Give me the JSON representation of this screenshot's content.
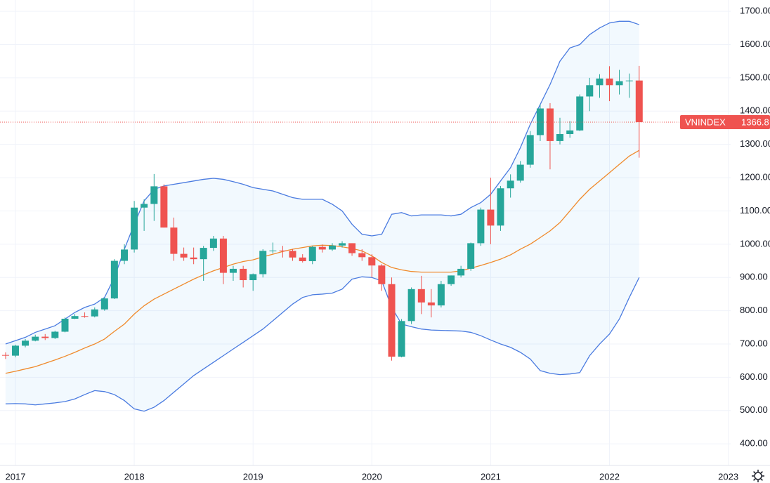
{
  "chart_data": {
    "type": "candlestick",
    "x": [
      2016.917,
      2017,
      2017.083,
      2017.167,
      2017.25,
      2017.333,
      2017.417,
      2017.5,
      2017.583,
      2017.667,
      2017.75,
      2017.833,
      2017.917,
      2018,
      2018.083,
      2018.167,
      2018.25,
      2018.333,
      2018.417,
      2018.5,
      2018.583,
      2018.667,
      2018.75,
      2018.833,
      2018.917,
      2019,
      2019.083,
      2019.167,
      2019.25,
      2019.333,
      2019.417,
      2019.5,
      2019.583,
      2019.667,
      2019.75,
      2019.833,
      2019.917,
      2020,
      2020.083,
      2020.167,
      2020.25,
      2020.333,
      2020.417,
      2020.5,
      2020.583,
      2020.667,
      2020.75,
      2020.833,
      2020.917,
      2021,
      2021.083,
      2021.167,
      2021.25,
      2021.333,
      2021.417,
      2021.5,
      2021.583,
      2021.667,
      2021.75,
      2021.833,
      2021.917,
      2022,
      2022.083,
      2022.167,
      2022.25
    ],
    "series": [
      {
        "name": "VNINDEX",
        "up_color": "#26a69a",
        "down_color": "#ef5350",
        "open": [
          667,
          665,
          695,
          710,
          722,
          718,
          737,
          776,
          784,
          783,
          804,
          837,
          950,
          984,
          1110,
          1121,
          1174,
          1050,
          971,
          960,
          955,
          989,
          1017,
          914,
          926,
          892,
          910,
          980,
          981,
          980,
          960,
          949,
          992,
          984,
          996,
          1003,
          973,
          961,
          936,
          880,
          662,
          769,
          865,
          825,
          816,
          880,
          906,
          926,
          1003,
          1104,
          1056,
          1168,
          1191,
          1239,
          1328,
          1408,
          1310,
          1331,
          1342,
          1444,
          1478,
          1498,
          1478,
          1490,
          1492
        ],
        "high": [
          675,
          698,
          715,
          728,
          730,
          740,
          780,
          790,
          795,
          810,
          840,
          955,
          1000,
          1130,
          1135,
          1211,
          1180,
          1080,
          990,
          990,
          995,
          1025,
          1025,
          935,
          935,
          912,
          985,
          1005,
          995,
          985,
          970,
          995,
          999,
          1003,
          1009,
          1003,
          985,
          970,
          940,
          900,
          775,
          870,
          905,
          865,
          890,
          906,
          935,
          1005,
          1110,
          1200,
          1175,
          1210,
          1250,
          1340,
          1420,
          1424,
          1380,
          1370,
          1450,
          1500,
          1511,
          1535,
          1524,
          1513,
          1536
        ],
        "low": [
          655,
          660,
          690,
          708,
          712,
          715,
          735,
          775,
          779,
          780,
          800,
          835,
          940,
          975,
          1040,
          1070,
          1050,
          950,
          950,
          940,
          890,
          980,
          880,
          890,
          870,
          860,
          900,
          972,
          960,
          950,
          945,
          940,
          975,
          980,
          990,
          965,
          950,
          900,
          860,
          650,
          660,
          760,
          790,
          780,
          810,
          875,
          900,
          920,
          995,
          1000,
          1040,
          1140,
          1185,
          1230,
          1310,
          1225,
          1300,
          1320,
          1340,
          1400,
          1440,
          1430,
          1450,
          1440,
          1260
        ],
        "close": [
          665,
          695,
          710,
          722,
          718,
          737,
          776,
          784,
          783,
          804,
          837,
          950,
          984,
          1110,
          1121,
          1174,
          1050,
          971,
          960,
          955,
          989,
          1017,
          914,
          926,
          892,
          910,
          980,
          981,
          980,
          960,
          949,
          992,
          984,
          996,
          1003,
          973,
          961,
          936,
          880,
          662,
          769,
          865,
          825,
          816,
          880,
          906,
          926,
          1003,
          1104,
          1056,
          1168,
          1191,
          1239,
          1328,
          1408,
          1310,
          1331,
          1342,
          1444,
          1478,
          1498,
          1478,
          1490,
          1492,
          1366.8
        ]
      }
    ],
    "bands": {
      "band_color": "#4a7be0",
      "middle_color": "#f08a2c",
      "fill": "#2196f3",
      "upper": [
        700,
        710,
        720,
        735,
        745,
        755,
        775,
        795,
        810,
        820,
        840,
        900,
        985,
        1060,
        1130,
        1165,
        1175,
        1180,
        1185,
        1190,
        1195,
        1198,
        1195,
        1188,
        1180,
        1170,
        1165,
        1160,
        1150,
        1140,
        1135,
        1135,
        1135,
        1120,
        1100,
        1060,
        1030,
        1025,
        1030,
        1090,
        1095,
        1085,
        1088,
        1088,
        1088,
        1085,
        1090,
        1110,
        1125,
        1150,
        1190,
        1230,
        1290,
        1360,
        1420,
        1480,
        1550,
        1590,
        1600,
        1630,
        1650,
        1665,
        1670,
        1670,
        1660
      ],
      "middle": [
        612,
        618,
        625,
        632,
        642,
        652,
        663,
        675,
        688,
        700,
        715,
        738,
        760,
        790,
        815,
        835,
        850,
        865,
        880,
        895,
        908,
        920,
        930,
        940,
        948,
        953,
        962,
        970,
        978,
        985,
        990,
        995,
        997,
        996,
        992,
        987,
        980,
        965,
        945,
        930,
        923,
        918,
        916,
        916,
        916,
        916,
        920,
        928,
        936,
        945,
        955,
        968,
        985,
        1000,
        1020,
        1040,
        1065,
        1100,
        1135,
        1165,
        1190,
        1215,
        1240,
        1265,
        1282
      ],
      "lower": [
        520,
        521,
        520,
        517,
        520,
        523,
        527,
        535,
        548,
        560,
        557,
        548,
        530,
        505,
        498,
        510,
        530,
        555,
        580,
        605,
        625,
        645,
        665,
        685,
        705,
        725,
        745,
        770,
        795,
        820,
        840,
        848,
        850,
        853,
        865,
        895,
        902,
        900,
        890,
        810,
        760,
        752,
        745,
        742,
        741,
        740,
        739,
        735,
        725,
        712,
        700,
        690,
        675,
        655,
        620,
        612,
        608,
        610,
        614,
        665,
        700,
        730,
        775,
        840,
        900
      ]
    },
    "xlim": [
      2016.87,
      2023.02
    ],
    "xticks": [
      2017,
      2018,
      2019,
      2020,
      2021,
      2022,
      2023
    ],
    "ylim": [
      335,
      1734
    ],
    "yticks": [
      {
        "value": 400,
        "label": "400.00"
      },
      {
        "value": 500,
        "label": "500.00"
      },
      {
        "value": 600,
        "label": "600.00"
      },
      {
        "value": 700,
        "label": "700.00"
      },
      {
        "value": 800,
        "label": "800.00"
      },
      {
        "value": 900,
        "label": "900.00"
      },
      {
        "value": 1000,
        "label": "1000.00"
      },
      {
        "value": 1100,
        "label": "1100.00"
      },
      {
        "value": 1200,
        "label": "1200.00"
      },
      {
        "value": 1300,
        "label": "1300.00"
      },
      {
        "value": 1400,
        "label": "1400.00"
      },
      {
        "value": 1500,
        "label": "1500.00"
      },
      {
        "value": 1600,
        "label": "1600.00"
      },
      {
        "value": 1700,
        "label": "1700.00"
      }
    ],
    "grid": true
  }
}
